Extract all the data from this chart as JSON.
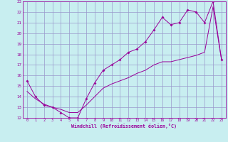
{
  "xlabel": "Windchill (Refroidissement éolien,°C)",
  "xlim": [
    -0.5,
    23.5
  ],
  "ylim": [
    12,
    23
  ],
  "xticks": [
    0,
    1,
    2,
    3,
    4,
    5,
    6,
    7,
    8,
    9,
    10,
    11,
    12,
    13,
    14,
    15,
    16,
    17,
    18,
    19,
    20,
    21,
    22,
    23
  ],
  "yticks": [
    12,
    13,
    14,
    15,
    16,
    17,
    18,
    19,
    20,
    21,
    22,
    23
  ],
  "bg_color": "#c8eef0",
  "line_color": "#990099",
  "grid_color": "#9999cc",
  "series1_x": [
    0,
    1,
    2,
    3,
    4,
    5,
    6,
    7,
    8,
    9,
    10,
    11,
    12,
    13,
    14,
    15,
    16,
    17,
    18,
    19,
    20,
    21,
    22,
    23
  ],
  "series1_y": [
    15.5,
    14.0,
    13.2,
    13.0,
    12.5,
    12.0,
    12.0,
    13.8,
    15.3,
    16.5,
    17.0,
    17.5,
    18.2,
    18.5,
    19.2,
    20.3,
    21.5,
    20.8,
    21.0,
    22.2,
    22.0,
    21.0,
    23.0,
    17.5
  ],
  "series2_x": [
    0,
    1,
    2,
    3,
    4,
    5,
    6,
    7,
    8,
    9,
    10,
    11,
    12,
    13,
    14,
    15,
    16,
    17,
    18,
    19,
    20,
    21,
    22,
    23
  ],
  "series2_y": [
    14.5,
    13.8,
    13.3,
    13.0,
    12.8,
    12.5,
    12.5,
    13.2,
    14.0,
    14.8,
    15.2,
    15.5,
    15.8,
    16.2,
    16.5,
    17.0,
    17.3,
    17.3,
    17.5,
    17.7,
    17.9,
    18.2,
    22.5,
    17.5
  ]
}
